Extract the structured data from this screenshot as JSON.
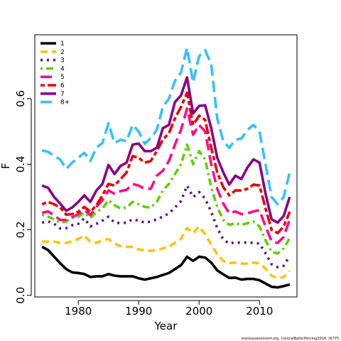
{
  "chart_data": {
    "type": "line",
    "xlabel": "Year",
    "ylabel": "F",
    "xlim": [
      1972.8,
      2016.2
    ],
    "ylim": [
      -0.005,
      0.795
    ],
    "xticks": [
      1980,
      1990,
      2000,
      2010
    ],
    "yticks": [
      0.0,
      0.2,
      0.4,
      0.6
    ],
    "ytick_labels": [
      "0.0",
      "0.2",
      "0.4",
      "0.6"
    ],
    "grid": false,
    "legend_position": "top-left",
    "credit": "stockassessment.org, CentralBalticHerring2016, r6775",
    "x": [
      1974,
      1975,
      1976,
      1977,
      1978,
      1979,
      1980,
      1981,
      1982,
      1983,
      1984,
      1985,
      1986,
      1987,
      1988,
      1989,
      1990,
      1991,
      1992,
      1993,
      1994,
      1995,
      1996,
      1997,
      1998,
      1999,
      2000,
      2001,
      2002,
      2003,
      2004,
      2005,
      2006,
      2007,
      2008,
      2009,
      2010,
      2011,
      2012,
      2013,
      2014,
      2015
    ],
    "series": [
      {
        "name": "1",
        "color": "#000000",
        "dash": "solid",
        "values": [
          0.148,
          0.138,
          0.118,
          0.098,
          0.08,
          0.07,
          0.068,
          0.065,
          0.056,
          0.058,
          0.058,
          0.065,
          0.06,
          0.058,
          0.058,
          0.058,
          0.052,
          0.048,
          0.052,
          0.056,
          0.062,
          0.068,
          0.08,
          0.092,
          0.118,
          0.105,
          0.118,
          0.115,
          0.1,
          0.076,
          0.064,
          0.053,
          0.054,
          0.048,
          0.05,
          0.05,
          0.046,
          0.036,
          0.026,
          0.024,
          0.028,
          0.033
        ]
      },
      {
        "name": "2",
        "color": "#ffc20a",
        "dash": "dashed",
        "values": [
          0.164,
          0.164,
          0.164,
          0.16,
          0.16,
          0.165,
          0.172,
          0.182,
          0.163,
          0.16,
          0.168,
          0.172,
          0.158,
          0.15,
          0.148,
          0.148,
          0.14,
          0.138,
          0.136,
          0.138,
          0.143,
          0.148,
          0.16,
          0.173,
          0.205,
          0.19,
          0.21,
          0.186,
          0.155,
          0.125,
          0.105,
          0.098,
          0.1,
          0.097,
          0.097,
          0.1,
          0.098,
          0.082,
          0.06,
          0.053,
          0.055,
          0.075
        ]
      },
      {
        "name": "3",
        "color": "#59168a",
        "dash": "dotted",
        "values": [
          0.222,
          0.226,
          0.218,
          0.204,
          0.205,
          0.214,
          0.218,
          0.235,
          0.21,
          0.218,
          0.228,
          0.24,
          0.222,
          0.22,
          0.222,
          0.232,
          0.228,
          0.222,
          0.225,
          0.232,
          0.24,
          0.25,
          0.268,
          0.288,
          0.335,
          0.3,
          0.315,
          0.295,
          0.255,
          0.205,
          0.17,
          0.158,
          0.162,
          0.16,
          0.162,
          0.16,
          0.158,
          0.128,
          0.095,
          0.086,
          0.09,
          0.12
        ]
      },
      {
        "name": "4",
        "color": "#5fd000",
        "dash": "dotdash",
        "values": [
          0.246,
          0.24,
          0.232,
          0.222,
          0.225,
          0.238,
          0.24,
          0.252,
          0.236,
          0.255,
          0.265,
          0.29,
          0.275,
          0.265,
          0.268,
          0.285,
          0.278,
          0.27,
          0.268,
          0.285,
          0.32,
          0.34,
          0.37,
          0.4,
          0.46,
          0.4,
          0.44,
          0.415,
          0.33,
          0.27,
          0.23,
          0.215,
          0.22,
          0.215,
          0.22,
          0.225,
          0.21,
          0.168,
          0.132,
          0.128,
          0.143,
          0.175
        ]
      },
      {
        "name": "5",
        "color": "#ff0a8c",
        "dash": "longdash",
        "values": [
          0.252,
          0.256,
          0.244,
          0.23,
          0.23,
          0.238,
          0.248,
          0.26,
          0.245,
          0.27,
          0.29,
          0.32,
          0.31,
          0.318,
          0.322,
          0.34,
          0.335,
          0.325,
          0.325,
          0.365,
          0.38,
          0.41,
          0.46,
          0.505,
          0.57,
          0.49,
          0.52,
          0.5,
          0.4,
          0.325,
          0.28,
          0.25,
          0.256,
          0.248,
          0.25,
          0.256,
          0.26,
          0.21,
          0.165,
          0.16,
          0.178,
          0.232
        ]
      },
      {
        "name": "6",
        "color": "#ee0000",
        "dash": "twodash",
        "values": [
          0.278,
          0.285,
          0.278,
          0.268,
          0.246,
          0.248,
          0.255,
          0.27,
          0.255,
          0.275,
          0.305,
          0.34,
          0.335,
          0.355,
          0.375,
          0.425,
          0.42,
          0.405,
          0.41,
          0.44,
          0.475,
          0.495,
          0.54,
          0.575,
          0.618,
          0.52,
          0.548,
          0.535,
          0.45,
          0.375,
          0.33,
          0.305,
          0.32,
          0.32,
          0.325,
          0.338,
          0.335,
          0.265,
          0.2,
          0.19,
          0.21,
          0.255
        ]
      },
      {
        "name": "7",
        "color": "#880088",
        "dash": "solid",
        "values": [
          0.335,
          0.328,
          0.3,
          0.28,
          0.258,
          0.268,
          0.285,
          0.305,
          0.285,
          0.32,
          0.34,
          0.398,
          0.37,
          0.395,
          0.405,
          0.46,
          0.463,
          0.44,
          0.44,
          0.45,
          0.51,
          0.52,
          0.59,
          0.61,
          0.665,
          0.555,
          0.578,
          0.58,
          0.51,
          0.42,
          0.375,
          0.338,
          0.365,
          0.355,
          0.39,
          0.415,
          0.405,
          0.31,
          0.232,
          0.222,
          0.242,
          0.3
        ]
      },
      {
        "name": "8+",
        "color": "#35c0ff",
        "dash": "longdash",
        "values": [
          0.442,
          0.438,
          0.425,
          0.415,
          0.386,
          0.405,
          0.42,
          0.435,
          0.41,
          0.45,
          0.465,
          0.525,
          0.465,
          0.475,
          0.47,
          0.52,
          0.5,
          0.462,
          0.48,
          0.505,
          0.575,
          0.6,
          0.655,
          0.68,
          0.755,
          0.65,
          0.73,
          0.748,
          0.705,
          0.54,
          0.47,
          0.45,
          0.475,
          0.478,
          0.505,
          0.52,
          0.5,
          0.4,
          0.3,
          0.278,
          0.3,
          0.375
        ]
      }
    ]
  }
}
